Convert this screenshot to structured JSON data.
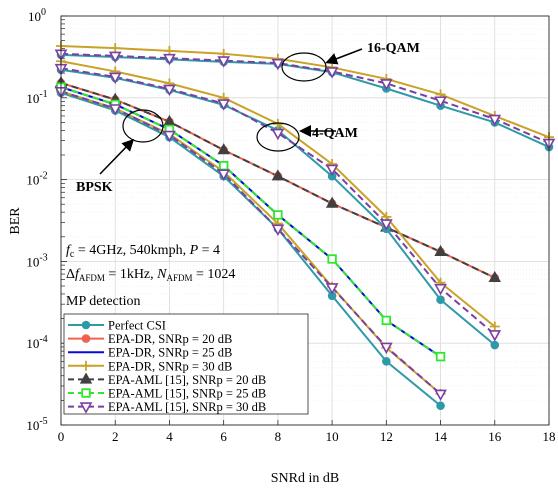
{
  "chart_data": {
    "type": "line",
    "xlabel": "SNRd in dB",
    "ylabel": "BER",
    "xlim": [
      0,
      18
    ],
    "ylim": [
      1e-05,
      1
    ],
    "yscale": "log",
    "grid": true,
    "legend_position": "bottom-left",
    "x_ticks": [
      "0",
      "2",
      "4",
      "6",
      "8",
      "10",
      "12",
      "14",
      "16",
      "18"
    ],
    "y_ticks": [
      {
        "value": 1,
        "base": "10",
        "exp": "0"
      },
      {
        "value": 0.1,
        "base": "10",
        "exp": "-1"
      },
      {
        "value": 0.01,
        "base": "10",
        "exp": "-2"
      },
      {
        "value": 0.001,
        "base": "10",
        "exp": "-3"
      },
      {
        "value": 0.0001,
        "base": "10",
        "exp": "-4"
      },
      {
        "value": 1e-05,
        "base": "10",
        "exp": "-5"
      }
    ],
    "series": [
      {
        "name": "Perfect CSI",
        "color": "#2e9aa8",
        "dash": "solid",
        "marker": "circle",
        "filled": true,
        "group": "BPSK",
        "x": [
          0,
          2,
          4,
          6,
          8,
          10,
          12,
          14
        ],
        "y": [
          0.115,
          0.07,
          0.033,
          0.011,
          0.0025,
          0.00038,
          6e-05,
          1.72e-05
        ]
      },
      {
        "name": "EPA-DR, SNRp = 20 dB",
        "color": "#f0624d",
        "dash": "solid",
        "marker": "circle",
        "filled": true,
        "group": "BPSK",
        "x": [
          0,
          2,
          4,
          6,
          8,
          10,
          12,
          14,
          16
        ],
        "y": [
          0.152,
          0.095,
          0.051,
          0.023,
          0.011,
          0.0051,
          0.0026,
          0.00131,
          0.00063
        ]
      },
      {
        "name": "EPA-DR, SNRp = 25 dB",
        "color": "#0a0ad8",
        "dash": "solid",
        "marker": "none",
        "filled": false,
        "group": "BPSK",
        "x": [
          0,
          2,
          4,
          6,
          8,
          10,
          12,
          14
        ],
        "y": [
          0.135,
          0.083,
          0.041,
          0.0148,
          0.0037,
          0.00107,
          0.00019,
          6.85e-05
        ]
      },
      {
        "name": "EPA-DR, SNRp = 30 dB",
        "color": "#c9a227",
        "dash": "solid",
        "marker": "plus",
        "filled": false,
        "group": "BPSK",
        "x": [
          0,
          2,
          4,
          6,
          8,
          10,
          12,
          14
        ],
        "y": [
          0.12,
          0.074,
          0.036,
          0.0125,
          0.0029,
          0.00049,
          8.8e-05,
          2.4e-05
        ]
      },
      {
        "name": "EPA-AML [15], SNRp = 20 dB",
        "color": "#404040",
        "dash": "dashed",
        "marker": "triangle-up",
        "filled": true,
        "group": "BPSK",
        "x": [
          0,
          2,
          4,
          6,
          8,
          10,
          12,
          14,
          16
        ],
        "y": [
          0.152,
          0.095,
          0.051,
          0.023,
          0.011,
          0.0051,
          0.0026,
          0.00131,
          0.00063
        ]
      },
      {
        "name": "EPA-AML [15], SNRp = 25 dB",
        "color": "#2ee82e",
        "dash": "dashed",
        "marker": "square",
        "filled": false,
        "group": "BPSK",
        "x": [
          0,
          2,
          4,
          6,
          8,
          10,
          12,
          14
        ],
        "y": [
          0.135,
          0.083,
          0.041,
          0.0148,
          0.0037,
          0.00107,
          0.00019,
          6.85e-05
        ]
      },
      {
        "name": "EPA-AML [15], SNRp = 30 dB",
        "color": "#7b3fa3",
        "dash": "dashed",
        "marker": "triangle-down",
        "filled": false,
        "group": "BPSK",
        "x": [
          0,
          2,
          4,
          6,
          8,
          10,
          12,
          14
        ],
        "y": [
          0.12,
          0.074,
          0.035,
          0.0118,
          0.0025,
          0.00048,
          9e-05,
          2.4e-05
        ]
      },
      {
        "color": "#2e9aa8",
        "dash": "solid",
        "marker": "circle",
        "filled": true,
        "group": "4-QAM",
        "x": [
          0,
          2,
          4,
          6,
          8,
          10,
          12,
          14,
          16
        ],
        "y": [
          0.22,
          0.175,
          0.125,
          0.082,
          0.04,
          0.011,
          0.0025,
          0.00034,
          9.5e-05
        ]
      },
      {
        "color": "#c9a227",
        "dash": "solid",
        "marker": "plus",
        "filled": false,
        "group": "4-QAM",
        "x": [
          0,
          2,
          4,
          6,
          8,
          10,
          12,
          14,
          16
        ],
        "y": [
          0.28,
          0.21,
          0.15,
          0.1,
          0.048,
          0.0155,
          0.0035,
          0.00055,
          0.00016
        ]
      },
      {
        "color": "#7b3fa3",
        "dash": "dashed",
        "marker": "triangle-down",
        "filled": false,
        "group": "4-QAM",
        "x": [
          0,
          2,
          4,
          6,
          8,
          10,
          12,
          14,
          16
        ],
        "y": [
          0.23,
          0.18,
          0.128,
          0.085,
          0.037,
          0.0135,
          0.0029,
          0.00047,
          0.000128
        ]
      },
      {
        "color": "#2e9aa8",
        "dash": "solid",
        "marker": "circle",
        "filled": true,
        "group": "16-QAM",
        "x": [
          0,
          2,
          4,
          6,
          8,
          10,
          12,
          14,
          16,
          18
        ],
        "y": [
          0.335,
          0.315,
          0.295,
          0.275,
          0.26,
          0.205,
          0.13,
          0.08,
          0.05,
          0.025
        ]
      },
      {
        "color": "#c9a227",
        "dash": "solid",
        "marker": "plus",
        "filled": false,
        "group": "16-QAM",
        "x": [
          0,
          2,
          4,
          6,
          8,
          10,
          12,
          14,
          16,
          18
        ],
        "y": [
          0.43,
          0.405,
          0.375,
          0.345,
          0.3,
          0.235,
          0.17,
          0.11,
          0.06,
          0.033
        ]
      },
      {
        "color": "#7b3fa3",
        "dash": "dashed",
        "marker": "triangle-down",
        "filled": false,
        "group": "16-QAM",
        "x": [
          0,
          2,
          4,
          6,
          8,
          10,
          12,
          14,
          16,
          18
        ],
        "y": [
          0.345,
          0.325,
          0.305,
          0.285,
          0.265,
          0.21,
          0.15,
          0.092,
          0.055,
          0.028
        ]
      }
    ],
    "annotations": [
      {
        "key": "bpsk",
        "label": "BPSK"
      },
      {
        "key": "qam4",
        "label": "4-QAM"
      },
      {
        "key": "qam16",
        "label": "16-QAM"
      }
    ]
  },
  "info": {
    "line1": {
      "fc_sym": "f",
      "fc_sub": "c",
      "rest": " = 4GHz,  540kmph,  ",
      "p_sym": "P",
      "p_rest": " = 4"
    },
    "line2": {
      "delta": "Δ",
      "f_sym": "f",
      "sub": "AFDM",
      "rest1": " = 1kHz,  ",
      "n_sym": "N",
      "n_sub": "AFDM",
      "rest2": " = 1024"
    },
    "line3": "MP detection"
  }
}
